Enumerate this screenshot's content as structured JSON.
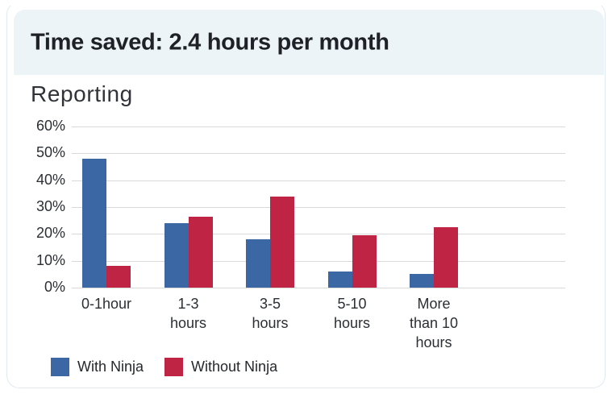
{
  "header": {
    "title": "Time saved: 2.4 hours per month"
  },
  "chart_data": {
    "type": "bar",
    "title": "Reporting",
    "categories": [
      "0-1hour",
      "1-3 hours",
      "3-5 hours",
      "5-10 hours",
      "More than 10 hours"
    ],
    "category_label_lines": [
      [
        "0-1hour"
      ],
      [
        "1-3",
        "hours"
      ],
      [
        "3-5",
        "hours"
      ],
      [
        "5-10",
        "hours"
      ],
      [
        "More",
        "than 10",
        "hours"
      ]
    ],
    "series": [
      {
        "name": "With Ninja",
        "color": "#3B68A5",
        "values": [
          48,
          24,
          18,
          6,
          5
        ]
      },
      {
        "name": "Without Ninja",
        "color": "#BF2444",
        "values": [
          8,
          26.5,
          34,
          19.5,
          22.5
        ]
      }
    ],
    "xlabel": "",
    "ylabel": "",
    "y_ticks": [
      "0%",
      "10%",
      "20%",
      "30%",
      "40%",
      "50%",
      "60%"
    ],
    "ylim": [
      0,
      60
    ],
    "grid": true,
    "legend_position": "bottom-left"
  },
  "theme": {
    "band_bg": "#ECF4F7",
    "card_border": "#E0EBF1",
    "title_color": "#1E2127",
    "grid_color": "#D9D9D9",
    "axis_text_color": "#2B2F33"
  }
}
